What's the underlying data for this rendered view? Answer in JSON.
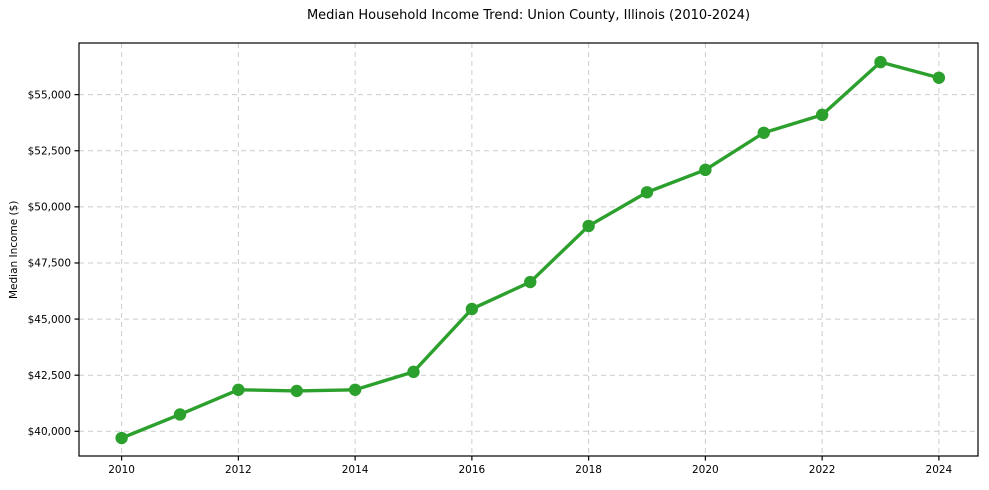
{
  "chart_data": {
    "type": "line",
    "title": "Median Household Income Trend: Union County, Illinois (2010-2024)",
    "xlabel": "",
    "ylabel": "Median Income ($)",
    "x": [
      2010,
      2011,
      2012,
      2013,
      2014,
      2015,
      2016,
      2017,
      2018,
      2019,
      2020,
      2021,
      2022,
      2023,
      2024
    ],
    "values": [
      39700,
      40750,
      41850,
      41800,
      41850,
      42650,
      45450,
      46650,
      49150,
      50650,
      51650,
      53300,
      54100,
      56450,
      55750
    ],
    "xlim": [
      2009.27,
      2024.67
    ],
    "ylim": [
      38900,
      57300
    ],
    "xticks": [
      2010,
      2012,
      2014,
      2016,
      2018,
      2020,
      2022,
      2024
    ],
    "xtick_labels": [
      "2010",
      "2012",
      "2014",
      "2016",
      "2018",
      "2020",
      "2022",
      "2024"
    ],
    "yticks": [
      40000,
      42500,
      45000,
      47500,
      50000,
      52500,
      55000
    ],
    "ytick_labels": [
      "$40,000",
      "$42,500",
      "$45,000",
      "$47,500",
      "$50,000",
      "$52,500",
      "$55,000"
    ],
    "grid": true,
    "grid_style": "dashed",
    "legend": "none",
    "marker": "circle",
    "colors": {
      "line": "#2ca02c",
      "grid": "#cccccc",
      "spine": "#000000",
      "text": "#000000",
      "background": "#ffffff"
    }
  }
}
